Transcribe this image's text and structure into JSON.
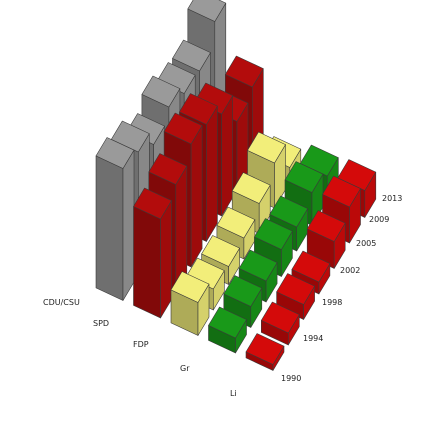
{
  "chart_data": {
    "type": "bar",
    "title": "",
    "xlabel": "",
    "ylabel": "",
    "categories": [
      "1990",
      "1994",
      "1998",
      "2002",
      "2005",
      "2009",
      "2013"
    ],
    "series": [
      {
        "name": "CDU/CSU",
        "color": "#9a9a9a",
        "values": [
          44,
          41,
          35,
          39,
          35,
          34,
          42
        ]
      },
      {
        "name": "SPD",
        "color": "#b30c0c",
        "values": [
          33,
          36,
          41,
          39,
          34,
          23,
          26
        ]
      },
      {
        "name": "FDP",
        "color": "#f2ee7a",
        "values": [
          11,
          7,
          6,
          7,
          10,
          15,
          5
        ]
      },
      {
        "name": "Gr",
        "color": "#199919",
        "values": [
          5,
          7,
          7,
          9,
          8,
          11,
          8
        ]
      },
      {
        "name": "Li",
        "color": "#d40a0a",
        "values": [
          2,
          4,
          5,
          4,
          9,
          12,
          9
        ]
      }
    ],
    "grid": false,
    "legend": "none"
  }
}
